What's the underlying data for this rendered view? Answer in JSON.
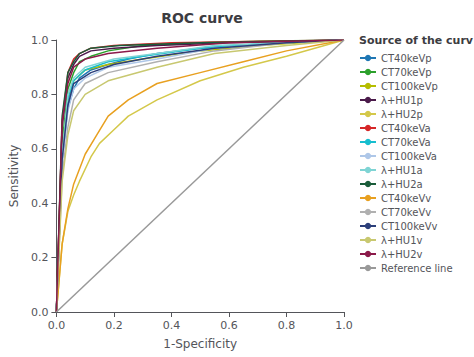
{
  "chart_data": {
    "type": "line",
    "title": "ROC curve",
    "xlabel": "1-Specificity",
    "ylabel": "Sensitivity",
    "legend_title": "Source of the curv",
    "legend": "right",
    "grid": false,
    "xlim": [
      0.0,
      1.0
    ],
    "ylim": [
      0.0,
      1.0
    ],
    "xticks": [
      {
        "value": 0.0,
        "label": "0.0"
      },
      0.2,
      0.4,
      0.6,
      0.8,
      {
        "value": 1.0,
        "label": "1.0"
      }
    ],
    "yticks": [
      {
        "value": 0.0,
        "label": "0.0"
      },
      0.2,
      0.4,
      0.6,
      0.8,
      {
        "value": 1.0,
        "label": "1.0"
      }
    ],
    "series": [
      {
        "name": "CT40keVp",
        "color": "#1f77b4",
        "x": [
          0,
          0.02,
          0.04,
          0.06,
          0.08,
          0.12,
          0.18,
          0.25,
          0.35,
          0.5,
          0.65,
          0.8,
          1.0
        ],
        "values": [
          0,
          0.56,
          0.75,
          0.82,
          0.86,
          0.89,
          0.91,
          0.93,
          0.95,
          0.97,
          0.98,
          0.99,
          1.0
        ]
      },
      {
        "name": "CT70keVp",
        "color": "#2ca02c",
        "x": [
          0,
          0.02,
          0.04,
          0.06,
          0.08,
          0.12,
          0.18,
          0.3,
          0.5,
          0.7,
          1.0
        ],
        "values": [
          0,
          0.62,
          0.82,
          0.88,
          0.92,
          0.94,
          0.96,
          0.98,
          0.99,
          0.995,
          1.0
        ]
      },
      {
        "name": "CT100keVp",
        "color": "#b5bd00",
        "x": [
          0,
          0.02,
          0.04,
          0.06,
          0.1,
          0.18,
          0.3,
          0.5,
          0.7,
          1.0
        ],
        "values": [
          0,
          0.58,
          0.78,
          0.85,
          0.89,
          0.91,
          0.93,
          0.96,
          0.98,
          1.0
        ]
      },
      {
        "name": "λ+HU1p",
        "color": "#4a1a4a",
        "x": [
          0,
          0.02,
          0.04,
          0.06,
          0.08,
          0.12,
          0.2,
          0.35,
          0.6,
          1.0
        ],
        "values": [
          0,
          0.68,
          0.86,
          0.91,
          0.94,
          0.96,
          0.97,
          0.98,
          0.99,
          1.0
        ]
      },
      {
        "name": "λ+HU2p",
        "color": "#d4c84a",
        "x": [
          0,
          0.02,
          0.04,
          0.06,
          0.08,
          0.12,
          0.15,
          0.2,
          0.25,
          0.35,
          0.5,
          0.65,
          0.8,
          1.0
        ],
        "values": [
          0,
          0.25,
          0.37,
          0.43,
          0.48,
          0.57,
          0.62,
          0.67,
          0.72,
          0.78,
          0.85,
          0.9,
          0.94,
          1.0
        ]
      },
      {
        "name": "CT40keVa",
        "color": "#d62728",
        "x": [
          0,
          0.02,
          0.04,
          0.06,
          0.08,
          0.12,
          0.2,
          0.4,
          1.0
        ],
        "values": [
          0,
          0.7,
          0.88,
          0.93,
          0.95,
          0.97,
          0.98,
          0.99,
          1.0
        ]
      },
      {
        "name": "CT70keVa",
        "color": "#17becf",
        "x": [
          0,
          0.02,
          0.04,
          0.06,
          0.1,
          0.18,
          0.3,
          0.5,
          0.75,
          1.0
        ],
        "values": [
          0,
          0.56,
          0.78,
          0.85,
          0.89,
          0.92,
          0.94,
          0.97,
          0.99,
          1.0
        ]
      },
      {
        "name": "CT100keVa",
        "color": "#aec7e8",
        "x": [
          0,
          0.02,
          0.04,
          0.06,
          0.1,
          0.18,
          0.35,
          0.55,
          0.8,
          1.0
        ],
        "values": [
          0,
          0.55,
          0.74,
          0.82,
          0.86,
          0.9,
          0.93,
          0.97,
          0.99,
          1.0
        ]
      },
      {
        "name": "λ+HU1a",
        "color": "#7fd4d4",
        "x": [
          0,
          0.02,
          0.04,
          0.06,
          0.1,
          0.2,
          0.35,
          0.55,
          0.8,
          1.0
        ],
        "values": [
          0,
          0.58,
          0.8,
          0.86,
          0.9,
          0.93,
          0.95,
          0.98,
          0.99,
          1.0
        ]
      },
      {
        "name": "λ+HU2a",
        "color": "#1a5c3a",
        "x": [
          0,
          0.02,
          0.04,
          0.06,
          0.08,
          0.12,
          0.22,
          0.5,
          1.0
        ],
        "values": [
          0,
          0.72,
          0.88,
          0.92,
          0.95,
          0.97,
          0.98,
          0.99,
          1.0
        ]
      },
      {
        "name": "CT40keVv",
        "color": "#e8a020",
        "x": [
          0,
          0.02,
          0.04,
          0.06,
          0.1,
          0.14,
          0.18,
          0.25,
          0.35,
          0.5,
          0.65,
          0.8,
          1.0
        ],
        "values": [
          0,
          0.25,
          0.38,
          0.47,
          0.58,
          0.65,
          0.72,
          0.78,
          0.84,
          0.88,
          0.92,
          0.96,
          1.0
        ]
      },
      {
        "name": "CT70keVv",
        "color": "#b0b0b0",
        "x": [
          0,
          0.02,
          0.04,
          0.06,
          0.1,
          0.18,
          0.35,
          0.55,
          0.8,
          1.0
        ],
        "values": [
          0,
          0.5,
          0.68,
          0.78,
          0.84,
          0.88,
          0.92,
          0.96,
          0.99,
          1.0
        ]
      },
      {
        "name": "CT100keVv",
        "color": "#2c3f7a",
        "x": [
          0,
          0.02,
          0.04,
          0.06,
          0.12,
          0.2,
          0.35,
          0.55,
          0.8,
          1.0
        ],
        "values": [
          0,
          0.56,
          0.76,
          0.84,
          0.88,
          0.91,
          0.94,
          0.97,
          0.99,
          1.0
        ]
      },
      {
        "name": "λ+HU1v",
        "color": "#c8c870",
        "x": [
          0,
          0.02,
          0.04,
          0.06,
          0.1,
          0.18,
          0.35,
          0.55,
          0.8,
          1.0
        ],
        "values": [
          0,
          0.48,
          0.65,
          0.74,
          0.8,
          0.85,
          0.9,
          0.95,
          0.98,
          1.0
        ]
      },
      {
        "name": "λ+HU2v",
        "color": "#8b1a4a",
        "x": [
          0,
          0.02,
          0.04,
          0.06,
          0.1,
          0.18,
          0.35,
          0.6,
          1.0
        ],
        "values": [
          0,
          0.7,
          0.84,
          0.9,
          0.93,
          0.95,
          0.97,
          0.99,
          1.0
        ]
      },
      {
        "name": "Reference line",
        "color": "#999999",
        "x": [
          0,
          1
        ],
        "values": [
          0,
          1
        ]
      }
    ]
  }
}
